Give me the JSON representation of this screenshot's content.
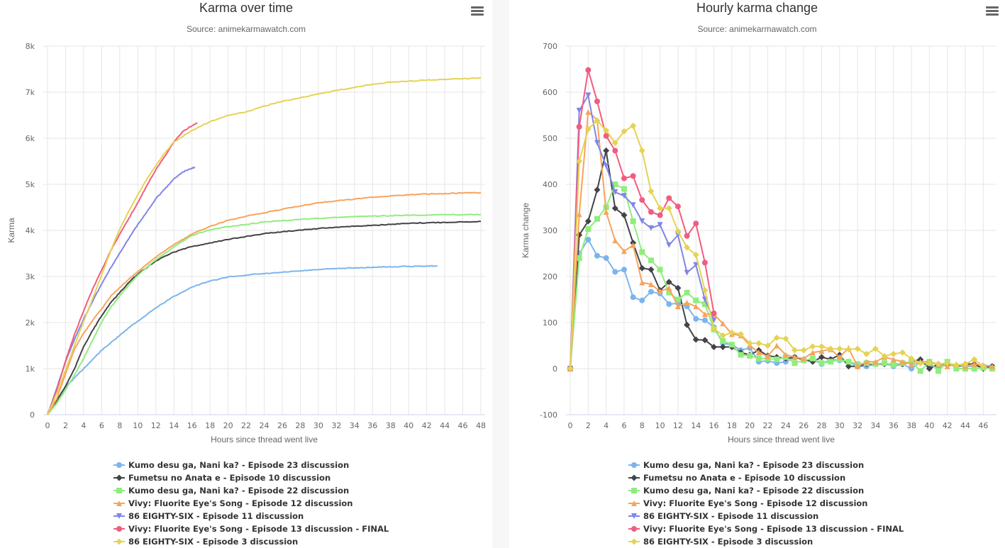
{
  "colors": {
    "grid": "#e6e6e6",
    "axis": "#ccd6eb",
    "tick_label": "#666666",
    "separator": "#f7f7f7"
  },
  "legend_series": [
    {
      "name": "Kumo desu ga, Nani ka? - Episode 23 discussion",
      "color": "#7cb5ec",
      "symbol": "circle"
    },
    {
      "name": "Fumetsu no Anata e - Episode 10 discussion",
      "color": "#434348",
      "symbol": "diamond"
    },
    {
      "name": "Kumo desu ga, Nani ka? - Episode 22 discussion",
      "color": "#90ed7d",
      "symbol": "square"
    },
    {
      "name": "Vivy: Fluorite Eye's Song - Episode 12 discussion",
      "color": "#f7a35c",
      "symbol": "triangle"
    },
    {
      "name": "86 EIGHTY-SIX - Episode 11 discussion",
      "color": "#8085e9",
      "symbol": "triangle-down"
    },
    {
      "name": "Vivy: Fluorite Eye's Song - Episode 13 discussion - FINAL",
      "color": "#f15c80",
      "symbol": "circle"
    },
    {
      "name": "86 EIGHTY-SIX - Episode 3 discussion",
      "color": "#e4d354",
      "symbol": "diamond"
    }
  ],
  "chart_data": [
    {
      "type": "line",
      "title": "Karma over time",
      "subtitle": "Source: animekarmawatch.com",
      "xlabel": "Hours since thread went live",
      "ylabel": "Karma",
      "xlim": [
        0,
        48
      ],
      "ylim": [
        0,
        8000
      ],
      "xticks": [
        "0",
        "2",
        "4",
        "6",
        "8",
        "10",
        "12",
        "14",
        "16",
        "18",
        "20",
        "22",
        "24",
        "26",
        "28",
        "30",
        "32",
        "34",
        "36",
        "38",
        "40",
        "42",
        "44",
        "46",
        "48"
      ],
      "yticks": [
        "0",
        "1k",
        "2k",
        "3k",
        "4k",
        "5k",
        "6k",
        "7k",
        "8k"
      ],
      "grid": true,
      "legend": "bottom",
      "markers": false,
      "series": [
        {
          "name": "Kumo desu ga, Nani ka? - Episode 23 discussion",
          "x": [
            0,
            1,
            2,
            3,
            4,
            5,
            6,
            7,
            8,
            9,
            10,
            12,
            14,
            16,
            18,
            20,
            22,
            24,
            26,
            28,
            30,
            32,
            34,
            36,
            38,
            40,
            42,
            43.2
          ],
          "y": [
            0,
            300,
            600,
            800,
            1000,
            1200,
            1400,
            1560,
            1720,
            1890,
            2030,
            2320,
            2570,
            2770,
            2900,
            2990,
            3030,
            3060,
            3090,
            3120,
            3150,
            3170,
            3185,
            3200,
            3210,
            3220,
            3225,
            3230
          ]
        },
        {
          "name": "Fumetsu no Anata e - Episode 10 discussion",
          "x": [
            0,
            1,
            2,
            3,
            4,
            5,
            6,
            7,
            8,
            9,
            10,
            12,
            14,
            16,
            18,
            20,
            22,
            24,
            26,
            28,
            30,
            32,
            34,
            36,
            38,
            40,
            42,
            44,
            46,
            48
          ],
          "y": [
            0,
            300,
            620,
            1000,
            1480,
            1830,
            2150,
            2430,
            2650,
            2870,
            3050,
            3340,
            3530,
            3650,
            3730,
            3800,
            3870,
            3930,
            3970,
            4010,
            4040,
            4070,
            4090,
            4110,
            4130,
            4150,
            4165,
            4175,
            4185,
            4195
          ]
        },
        {
          "name": "Kumo desu ga, Nani ka? - Episode 22 discussion",
          "x": [
            0,
            1,
            2,
            3,
            4,
            5,
            6,
            7,
            8,
            9,
            10,
            12,
            14,
            16,
            18,
            20,
            22,
            24,
            26,
            28,
            30,
            32,
            34,
            36,
            38,
            40,
            42,
            44,
            46,
            48
          ],
          "y": [
            0,
            240,
            540,
            870,
            1220,
            1620,
            2010,
            2330,
            2580,
            2820,
            3030,
            3360,
            3640,
            3890,
            4010,
            4080,
            4130,
            4180,
            4210,
            4240,
            4260,
            4280,
            4300,
            4310,
            4320,
            4330,
            4335,
            4340,
            4340,
            4345
          ]
        },
        {
          "name": "Vivy: Fluorite Eye's Song - Episode 12 discussion",
          "x": [
            0,
            1,
            2,
            3,
            4,
            5,
            6,
            7,
            8,
            9,
            10,
            12,
            14,
            16,
            18,
            20,
            22,
            24,
            26,
            28,
            30,
            32,
            34,
            36,
            38,
            40,
            42,
            44,
            46,
            48
          ],
          "y": [
            0,
            335,
            890,
            1430,
            1770,
            2050,
            2300,
            2570,
            2760,
            2940,
            3110,
            3420,
            3690,
            3920,
            4090,
            4220,
            4310,
            4380,
            4460,
            4530,
            4600,
            4640,
            4680,
            4720,
            4750,
            4770,
            4790,
            4800,
            4810,
            4820
          ]
        },
        {
          "name": "86 EIGHTY-SIX - Episode 11 discussion",
          "x": [
            0,
            1,
            2,
            3,
            4,
            5,
            6,
            7,
            8,
            9,
            10,
            11,
            12,
            13,
            14,
            15,
            16,
            16.3
          ],
          "y": [
            0,
            560,
            1150,
            1640,
            2080,
            2460,
            2840,
            3190,
            3510,
            3820,
            4130,
            4400,
            4690,
            4900,
            5120,
            5270,
            5350,
            5370
          ]
        },
        {
          "name": "Vivy: Fluorite Eye's Song - Episode 13 discussion - FINAL",
          "x": [
            0,
            1,
            2,
            3,
            4,
            5,
            6,
            7,
            8,
            9,
            10,
            11,
            12,
            13,
            14,
            15,
            16,
            16.6
          ],
          "y": [
            0,
            525,
            1170,
            1750,
            2250,
            2730,
            3140,
            3560,
            3920,
            4260,
            4600,
            4970,
            5320,
            5610,
            5920,
            6150,
            6270,
            6330
          ]
        },
        {
          "name": "86 EIGHTY-SIX - Episode 3 discussion",
          "x": [
            0,
            1,
            2,
            3,
            4,
            5,
            6,
            7,
            8,
            9,
            10,
            11,
            12,
            13,
            14,
            16,
            18,
            20,
            22,
            24,
            26,
            28,
            30,
            32,
            34,
            36,
            38,
            40,
            42,
            44,
            46,
            48
          ],
          "y": [
            0,
            450,
            970,
            1510,
            2030,
            2520,
            3030,
            3560,
            4030,
            4420,
            4770,
            5110,
            5410,
            5680,
            5920,
            6170,
            6360,
            6500,
            6570,
            6700,
            6800,
            6880,
            6960,
            7040,
            7100,
            7170,
            7220,
            7240,
            7260,
            7280,
            7290,
            7310
          ]
        }
      ]
    },
    {
      "type": "line",
      "title": "Hourly karma change",
      "subtitle": "Source: animekarmawatch.com",
      "xlabel": "Hours since thread went live",
      "ylabel": "Karma change",
      "xlim": [
        0,
        47
      ],
      "ylim": [
        -100,
        700
      ],
      "xticks": [
        "0",
        "2",
        "4",
        "6",
        "8",
        "10",
        "12",
        "14",
        "16",
        "18",
        "20",
        "22",
        "24",
        "26",
        "28",
        "30",
        "32",
        "34",
        "36",
        "38",
        "40",
        "42",
        "44",
        "46"
      ],
      "yticks": [
        "-100",
        "0",
        "100",
        "200",
        "300",
        "400",
        "500",
        "600",
        "700"
      ],
      "grid": true,
      "legend": "bottom",
      "markers": true,
      "series": [
        {
          "name": "Kumo desu ga, Nani ka? - Episode 23 discussion",
          "y": [
            0,
            250,
            280,
            245,
            240,
            210,
            215,
            155,
            148,
            167,
            163,
            140,
            142,
            135,
            108,
            105,
            90,
            55,
            52,
            40,
            45,
            15,
            17,
            12,
            15,
            25,
            18,
            20,
            10,
            20,
            18,
            15,
            5,
            5,
            10,
            12,
            5,
            10,
            0,
            15,
            5,
            5,
            10,
            5,
            5,
            5,
            5,
            5
          ]
        },
        {
          "name": "Fumetsu no Anata e - Episode 10 discussion",
          "y": [
            0,
            290,
            320,
            388,
            473,
            348,
            333,
            273,
            218,
            215,
            170,
            188,
            175,
            95,
            63,
            62,
            47,
            47,
            47,
            35,
            30,
            40,
            28,
            25,
            22,
            25,
            20,
            15,
            25,
            20,
            30,
            5,
            5,
            10,
            10,
            10,
            10,
            10,
            15,
            20,
            0,
            10,
            10,
            5,
            10,
            10,
            0,
            5
          ]
        },
        {
          "name": "Kumo desu ga, Nani ka? - Episode 22 discussion",
          "y": [
            0,
            240,
            303,
            325,
            350,
            400,
            390,
            320,
            253,
            235,
            215,
            165,
            150,
            165,
            148,
            140,
            85,
            60,
            52,
            30,
            28,
            22,
            22,
            20,
            25,
            12,
            18,
            22,
            12,
            15,
            20,
            15,
            10,
            12,
            10,
            12,
            8,
            12,
            15,
            -5,
            15,
            -5,
            15,
            0,
            0,
            0,
            2,
            0
          ]
        },
        {
          "name": "Vivy: Fluorite Eye's Song - Episode 12 discussion",
          "y": [
            0,
            335,
            557,
            540,
            340,
            278,
            255,
            268,
            187,
            183,
            168,
            175,
            135,
            143,
            135,
            118,
            118,
            98,
            75,
            72,
            50,
            35,
            27,
            50,
            30,
            25,
            22,
            35,
            38,
            42,
            25,
            45,
            5,
            15,
            15,
            25,
            20,
            15,
            10,
            15,
            15,
            10,
            5,
            10,
            5,
            10,
            8,
            5
          ]
        },
        {
          "name": "86 EIGHTY-SIX - Episode 11 discussion",
          "y": [
            0,
            560,
            593,
            490,
            440,
            383,
            375,
            355,
            320,
            305,
            312,
            268,
            290,
            208,
            225,
            150,
            105
          ]
        },
        {
          "name": "Vivy: Fluorite Eye's Song - Episode 13 discussion - FINAL",
          "y": [
            0,
            525,
            648,
            580,
            505,
            473,
            413,
            418,
            366,
            340,
            333,
            370,
            352,
            288,
            315,
            230,
            120
          ]
        },
        {
          "name": "86 EIGHTY-SIX - Episode 3 discussion",
          "y": [
            0,
            450,
            520,
            538,
            517,
            490,
            515,
            527,
            473,
            385,
            348,
            348,
            298,
            263,
            247,
            170,
            87,
            72,
            78,
            75,
            55,
            55,
            50,
            67,
            65,
            40,
            40,
            48,
            48,
            43,
            43,
            42,
            43,
            32,
            43,
            27,
            32,
            35,
            22,
            12,
            12,
            10,
            12,
            8,
            10,
            20,
            5
          ]
        }
      ]
    }
  ]
}
